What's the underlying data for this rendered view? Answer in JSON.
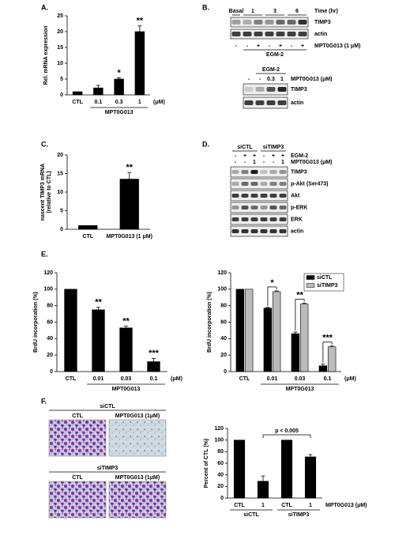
{
  "panel_labels": [
    "A.",
    "B.",
    "C.",
    "D.",
    "E.",
    "F."
  ],
  "blot_b": {
    "times": [
      "Basal",
      "1",
      "3",
      "6"
    ],
    "time_label": "Time (hr)",
    "bands_top": [
      "TIMP3",
      "actin"
    ],
    "treatment_row": [
      "-",
      "-",
      "+",
      "-",
      "+",
      "-",
      "+"
    ],
    "treatment_label": "MPT0G013 (1 μM)",
    "medium": "EGM-2",
    "lower": {
      "medium": "EGM-2",
      "doses": [
        "-",
        "-",
        "0.3",
        "1"
      ],
      "dose_label": "MPT0G013 (μM)",
      "bands": [
        "TIMP3",
        "actin"
      ]
    }
  },
  "blot_d": {
    "groups": [
      "siCTL",
      "siTIMP3"
    ],
    "rows": [
      {
        "label": "EGM-2",
        "values": [
          "-",
          "+",
          "+",
          "-",
          "+",
          "+"
        ]
      },
      {
        "label": "MPT0G013 (μM)",
        "values": [
          "-",
          "-",
          "1",
          "-",
          "-",
          "1"
        ]
      }
    ],
    "bands": [
      "TIMP3",
      "p-Akt (Ser473)",
      "Akt",
      "p-ERK",
      "ERK",
      "actin"
    ]
  },
  "images_f": {
    "groups": [
      {
        "name": "siCTL",
        "columns": [
          "CTL",
          "MPT0G013 (1μM)"
        ]
      },
      {
        "name": "siTIMP3",
        "columns": [
          "CTL",
          "MPT0G013 (1μM)"
        ]
      }
    ]
  },
  "chart_data": [
    {
      "type": "bar",
      "ylabel": "Rel. mRNA expression",
      "ylim": [
        0,
        25
      ],
      "yticks": [
        0,
        5,
        10,
        15,
        20,
        25
      ],
      "categories": [
        "CTL",
        "0.1",
        "0.3",
        "1"
      ],
      "values": [
        1,
        2.2,
        5,
        20
      ],
      "errors": [
        0,
        0.8,
        0.4,
        1.8
      ],
      "annotations": [
        null,
        null,
        "*",
        "**"
      ],
      "color": "#000000",
      "group_label": "MPT0G013",
      "unit": "(μM)"
    },
    {
      "type": "bar",
      "ylabel": [
        "nascent TIMP3 mRNA",
        "(relative to CTL)"
      ],
      "ylim": [
        0,
        20
      ],
      "yticks": [
        0,
        5,
        10,
        15,
        20
      ],
      "categories": [
        "CTL",
        "MPT0G013 (1 μM)"
      ],
      "values": [
        1,
        13.5
      ],
      "errors": [
        0,
        1.8
      ],
      "annotations": [
        null,
        "**"
      ],
      "color": "#000000"
    },
    {
      "type": "bar",
      "ylabel": "BrdU incorporation (%)",
      "ylim": [
        0,
        120
      ],
      "yticks": [
        0,
        20,
        40,
        60,
        80,
        100,
        120
      ],
      "categories": [
        "CTL",
        "0.01",
        "0.03",
        "0.1"
      ],
      "values": [
        100,
        75,
        53,
        12
      ],
      "errors": [
        0,
        3,
        2,
        4
      ],
      "annotations": [
        null,
        "**",
        "**",
        "***"
      ],
      "color": "#000000",
      "group_label": "MPT0G013",
      "unit": "(μM)"
    },
    {
      "type": "bar",
      "ylabel": "BrdU incorporation (%)",
      "ylim": [
        0,
        120
      ],
      "yticks": [
        0,
        20,
        40,
        60,
        80,
        100,
        120
      ],
      "categories": [
        "CTL",
        "0.01",
        "0.03",
        "0.1"
      ],
      "legend": "upper right",
      "series": [
        {
          "name": "siCTL",
          "color": "#000000",
          "values": [
            100,
            77,
            46,
            7
          ],
          "errors": [
            0,
            1,
            2,
            2
          ]
        },
        {
          "name": "siTIMP3",
          "color": "#bbbbbb",
          "values": [
            100,
            97,
            82,
            30
          ],
          "errors": [
            0,
            1,
            1,
            1
          ]
        }
      ],
      "annotations": [
        null,
        "*",
        "**",
        "***"
      ],
      "group_label": "MPT0G013",
      "unit": "(μM)"
    },
    {
      "type": "bar",
      "ylabel": "Percent of CTL (%)",
      "ylim": [
        0,
        120
      ],
      "yticks": [
        0,
        20,
        40,
        60,
        80,
        100,
        120
      ],
      "categories": [
        "CTL",
        "1",
        "CTL",
        "1"
      ],
      "values": [
        100,
        29,
        100,
        71
      ],
      "errors": [
        0,
        9,
        0,
        4
      ],
      "color": "#000000",
      "group_labels": [
        "siCTL",
        "siTIMP3"
      ],
      "unit": "MPT0G013 (μM)",
      "annotation": "p < 0.005"
    }
  ]
}
